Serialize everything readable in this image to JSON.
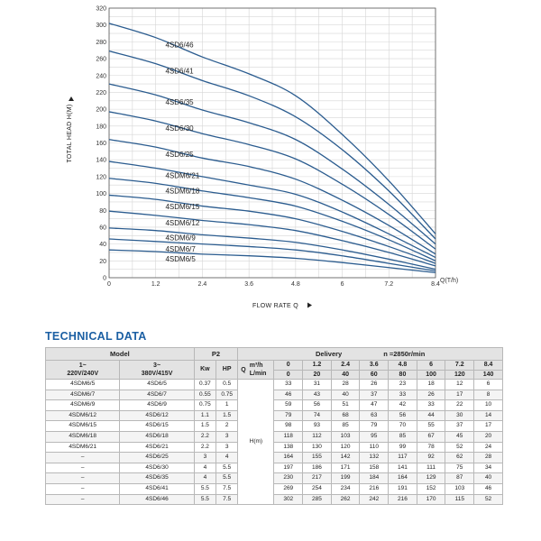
{
  "chart_data": {
    "type": "line",
    "xlabel": "FLOW RATE Q",
    "x_unit_label": "Q(T/h)",
    "ylabel": "TOTAL HEAD H(M)",
    "xlim": [
      0,
      8.4
    ],
    "ylim": [
      0,
      320
    ],
    "x_ticks": [
      "0",
      "1.2",
      "2.4",
      "3.6",
      "4.8",
      "6",
      "7.2",
      "8.4"
    ],
    "y_ticks": [
      "0",
      "10",
      "20",
      "30",
      "40",
      "50",
      "60",
      "70",
      "80",
      "90",
      "100",
      "110",
      "120",
      "130",
      "140",
      "150",
      "160",
      "170",
      "180",
      "190",
      "200",
      "210",
      "220",
      "230",
      "240",
      "250",
      "260",
      "270",
      "280",
      "290",
      "300",
      "310",
      "320"
    ],
    "y_tick_labels_shown": [
      "0",
      "20",
      "40",
      "60",
      "80",
      "100",
      "120",
      "140",
      "160",
      "180",
      "200",
      "220",
      "240",
      "260",
      "280",
      "300",
      "320"
    ],
    "grid": true,
    "x": [
      0,
      1.2,
      2.4,
      3.6,
      4.8,
      6,
      7.2,
      8.4
    ],
    "series": [
      {
        "name": "4SD6/46",
        "values": [
          302,
          285,
          262,
          242,
          216,
          170,
          115,
          52
        ]
      },
      {
        "name": "4SD6/41",
        "values": [
          269,
          254,
          234,
          216,
          191,
          152,
          103,
          46
        ]
      },
      {
        "name": "4SD6/35",
        "values": [
          230,
          217,
          199,
          184,
          164,
          129,
          87,
          40
        ]
      },
      {
        "name": "4SD6/30",
        "values": [
          197,
          186,
          171,
          158,
          141,
          111,
          75,
          34
        ]
      },
      {
        "name": "4SD6/25",
        "values": [
          164,
          155,
          142,
          132,
          117,
          92,
          62,
          28
        ]
      },
      {
        "name": "4SDM6/21",
        "values": [
          138,
          130,
          120,
          110,
          99,
          78,
          52,
          24
        ]
      },
      {
        "name": "4SDM6/18",
        "values": [
          118,
          112,
          103,
          95,
          85,
          67,
          45,
          20
        ]
      },
      {
        "name": "4SDM6/15",
        "values": [
          98,
          93,
          85,
          79,
          70,
          55,
          37,
          17
        ]
      },
      {
        "name": "4SDM6/12",
        "values": [
          79,
          74,
          68,
          63,
          56,
          44,
          30,
          14
        ]
      },
      {
        "name": "4SDM6/9",
        "values": [
          59,
          56,
          51,
          47,
          42,
          33,
          22,
          10
        ]
      },
      {
        "name": "4SDM6/7",
        "values": [
          46,
          43,
          40,
          37,
          33,
          26,
          17,
          8
        ]
      },
      {
        "name": "4SDM6/5",
        "values": [
          33,
          31,
          28,
          26,
          23,
          18,
          12,
          6
        ]
      }
    ]
  },
  "technical": {
    "title": "TECHNICAL DATA",
    "headers": {
      "model": "Model",
      "p2": "P2",
      "delivery": "Delivery",
      "speed": "n =2850r/min",
      "col_1phase": "1~\n220V/240V",
      "col_3phase": "3~\n380V/415V",
      "kw": "Kw",
      "hp": "HP",
      "q": "Q",
      "m3h": "m³/h",
      "lmin": "L/min",
      "h": "H(m)"
    },
    "m3h_values": [
      "0",
      "1.2",
      "2.4",
      "3.6",
      "4.8",
      "6",
      "7.2",
      "8.4"
    ],
    "lmin_values": [
      "0",
      "20",
      "40",
      "60",
      "80",
      "100",
      "120",
      "140"
    ],
    "rows": [
      {
        "m1": "4SDM6/5",
        "m3": "4SD6/5",
        "kw": "0.37",
        "hp": "0.5",
        "h": [
          "33",
          "31",
          "28",
          "26",
          "23",
          "18",
          "12",
          "6"
        ]
      },
      {
        "m1": "4SDM6/7",
        "m3": "4SD6/7",
        "kw": "0.55",
        "hp": "0.75",
        "h": [
          "46",
          "43",
          "40",
          "37",
          "33",
          "26",
          "17",
          "8"
        ]
      },
      {
        "m1": "4SDM6/9",
        "m3": "4SD6/9",
        "kw": "0.75",
        "hp": "1",
        "h": [
          "59",
          "56",
          "51",
          "47",
          "42",
          "33",
          "22",
          "10"
        ]
      },
      {
        "m1": "4SDM6/12",
        "m3": "4SD6/12",
        "kw": "1.1",
        "hp": "1.5",
        "h": [
          "79",
          "74",
          "68",
          "63",
          "56",
          "44",
          "30",
          "14"
        ]
      },
      {
        "m1": "4SDM6/15",
        "m3": "4SD6/15",
        "kw": "1.5",
        "hp": "2",
        "h": [
          "98",
          "93",
          "85",
          "79",
          "70",
          "55",
          "37",
          "17"
        ]
      },
      {
        "m1": "4SDM6/18",
        "m3": "4SD6/18",
        "kw": "2.2",
        "hp": "3",
        "h": [
          "118",
          "112",
          "103",
          "95",
          "85",
          "67",
          "45",
          "20"
        ]
      },
      {
        "m1": "4SDM6/21",
        "m3": "4SD6/21",
        "kw": "2.2",
        "hp": "3",
        "h": [
          "138",
          "130",
          "120",
          "110",
          "99",
          "78",
          "52",
          "24"
        ]
      },
      {
        "m1": "–",
        "m3": "4SD6/25",
        "kw": "3",
        "hp": "4",
        "h": [
          "164",
          "155",
          "142",
          "132",
          "117",
          "92",
          "62",
          "28"
        ]
      },
      {
        "m1": "–",
        "m3": "4SD6/30",
        "kw": "4",
        "hp": "5.5",
        "h": [
          "197",
          "186",
          "171",
          "158",
          "141",
          "111",
          "75",
          "34"
        ]
      },
      {
        "m1": "–",
        "m3": "4SD6/35",
        "kw": "4",
        "hp": "5.5",
        "h": [
          "230",
          "217",
          "199",
          "184",
          "164",
          "129",
          "87",
          "40"
        ]
      },
      {
        "m1": "–",
        "m3": "4SD6/41",
        "kw": "5.5",
        "hp": "7.5",
        "h": [
          "269",
          "254",
          "234",
          "216",
          "191",
          "152",
          "103",
          "46"
        ]
      },
      {
        "m1": "–",
        "m3": "4SD6/46",
        "kw": "5.5",
        "hp": "7.5",
        "h": [
          "302",
          "285",
          "262",
          "242",
          "216",
          "170",
          "115",
          "52"
        ]
      }
    ]
  },
  "colors": {
    "curve": "#2b5c8f",
    "grid": "#d6d6d6",
    "title": "#1b5fa3",
    "header_bg": "#e3e3e3"
  }
}
